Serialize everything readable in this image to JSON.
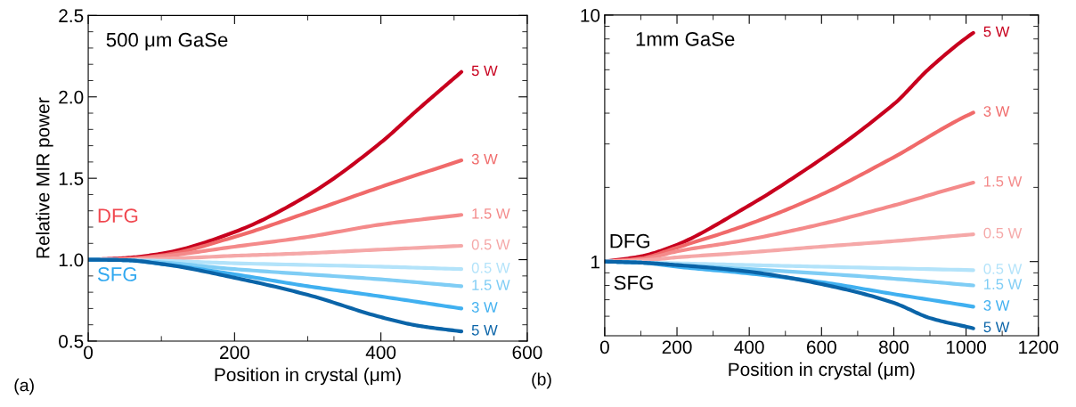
{
  "chart_data": [
    {
      "type": "line",
      "xlabel": "Position in crystal (μm)",
      "ylabel": "Relative MIR power",
      "annotations": [
        "500 μm GaSe",
        "DFG",
        "SFG",
        "(a)"
      ],
      "xlim": [
        0,
        600
      ],
      "xticks": [
        0,
        {
          "value": 100,
          "label": null
        },
        200,
        {
          "value": 300,
          "label": null
        },
        400,
        {
          "value": 500,
          "label": null
        },
        600
      ],
      "ylim": [
        0.5,
        2.5
      ],
      "yticks": [
        0.5,
        {
          "value": 0.6,
          "label": null
        },
        {
          "value": 0.7,
          "label": null
        },
        {
          "value": 0.8,
          "label": null
        },
        {
          "value": 0.9,
          "label": null
        },
        {
          "value": 1.0,
          "label": "1.0"
        },
        {
          "value": 1.1,
          "label": null
        },
        {
          "value": 1.2,
          "label": null
        },
        {
          "value": 1.3,
          "label": null
        },
        {
          "value": 1.4,
          "label": null
        },
        1.5,
        {
          "value": 1.6,
          "label": null
        },
        {
          "value": 1.7,
          "label": null
        },
        {
          "value": 1.8,
          "label": null
        },
        {
          "value": 1.9,
          "label": null
        },
        {
          "value": 2.0,
          "label": "2.0"
        },
        {
          "value": 2.1,
          "label": null
        },
        {
          "value": 2.2,
          "label": null
        },
        {
          "value": 2.3,
          "label": null
        },
        {
          "value": 2.4,
          "label": null
        },
        2.5
      ],
      "grid": false,
      "legend": false,
      "series": [
        {
          "name": "5 W",
          "color": "#c8001e",
          "x": [
            0,
            50,
            100,
            200,
            300,
            400,
            450,
            510
          ],
          "values": [
            1,
            1.01,
            1.037,
            1.17,
            1.395,
            1.72,
            1.92,
            2.153
          ]
        },
        {
          "name": "3 W",
          "color": "#f06a6a",
          "x": [
            0,
            50,
            100,
            200,
            300,
            400,
            510
          ],
          "values": [
            1,
            1.005,
            1.026,
            1.14,
            1.29,
            1.447,
            1.61
          ]
        },
        {
          "name": "1.5 W",
          "color": "#f48a8a",
          "x": [
            0,
            50,
            100,
            200,
            300,
            400,
            510
          ],
          "values": [
            1,
            1.003,
            1.02,
            1.08,
            1.14,
            1.216,
            1.275
          ]
        },
        {
          "name": "0.5 W",
          "color": "#f5a8a8",
          "x": [
            0,
            50,
            100,
            200,
            300,
            400,
            510
          ],
          "values": [
            1,
            1.001,
            1.005,
            1.024,
            1.04,
            1.062,
            1.085
          ]
        },
        {
          "name": "0.5 W",
          "color": "#b3e3fa",
          "x": [
            0,
            100,
            200,
            400,
            510
          ],
          "values": [
            1,
            0.993,
            0.978,
            0.957,
            0.942
          ]
        },
        {
          "name": "1.5 W",
          "color": "#7fcdf5",
          "x": [
            0,
            50,
            100,
            200,
            300,
            400,
            510
          ],
          "values": [
            1,
            0.997,
            0.984,
            0.942,
            0.91,
            0.879,
            0.837
          ]
        },
        {
          "name": "3 W",
          "color": "#40b0f0",
          "x": [
            0,
            50,
            100,
            200,
            300,
            400,
            510
          ],
          "values": [
            1,
            0.997,
            0.974,
            0.91,
            0.837,
            0.774,
            0.7
          ]
        },
        {
          "name": "5 W",
          "color": "#0a64a8",
          "x": [
            0,
            50,
            100,
            200,
            300,
            400,
            450,
            510
          ],
          "values": [
            1,
            0.997,
            0.974,
            0.889,
            0.784,
            0.647,
            0.595,
            0.559
          ]
        }
      ]
    },
    {
      "type": "line",
      "xlabel": "Position in crystal (μm)",
      "annotations": [
        "1mm GaSe",
        "DFG",
        "SFG",
        "(b)"
      ],
      "log": true,
      "xlim": [
        0,
        1200
      ],
      "xticks": [
        0,
        {
          "value": 100,
          "label": null
        },
        200,
        {
          "value": 300,
          "label": null
        },
        400,
        {
          "value": 500,
          "label": null
        },
        600,
        {
          "value": 700,
          "label": null
        },
        800,
        {
          "value": 900,
          "label": null
        },
        1000,
        {
          "value": 1100,
          "label": null
        },
        1200
      ],
      "ylim": [
        0.5,
        10
      ],
      "yticks": [
        {
          "value": 0.6,
          "label": null
        },
        {
          "value": 0.7,
          "label": null
        },
        {
          "value": 0.8,
          "label": null
        },
        {
          "value": 0.9,
          "label": null
        },
        1,
        {
          "value": 2,
          "label": null
        },
        {
          "value": 3,
          "label": null
        },
        {
          "value": 4,
          "label": null
        },
        {
          "value": 5,
          "label": null
        },
        {
          "value": 6,
          "label": null
        },
        {
          "value": 7,
          "label": null
        },
        {
          "value": 8,
          "label": null
        },
        {
          "value": 9,
          "label": null
        },
        10
      ],
      "grid": false,
      "legend": false,
      "series": [
        {
          "name": "5 W",
          "color": "#c8001e",
          "x": [
            0,
            100,
            200,
            400,
            600,
            800,
            900,
            1020
          ],
          "values": [
            1,
            1.05,
            1.17,
            1.69,
            2.61,
            4.35,
            6.1,
            8.47
          ]
        },
        {
          "name": "3 W",
          "color": "#f06a6a",
          "x": [
            0,
            100,
            200,
            400,
            600,
            800,
            1020
          ],
          "values": [
            1,
            1.03,
            1.14,
            1.42,
            1.87,
            2.65,
            4.02
          ]
        },
        {
          "name": "1.5 W",
          "color": "#f48a8a",
          "x": [
            0,
            100,
            200,
            400,
            600,
            800,
            1020
          ],
          "values": [
            1,
            1.02,
            1.1,
            1.23,
            1.42,
            1.69,
            2.09
          ]
        },
        {
          "name": "0.5 W",
          "color": "#f5a8a8",
          "x": [
            0,
            100,
            200,
            400,
            600,
            800,
            1020
          ],
          "values": [
            1,
            1.01,
            1.04,
            1.09,
            1.15,
            1.21,
            1.29
          ]
        },
        {
          "name": "0.5 W",
          "color": "#b3e3fa",
          "x": [
            0,
            200,
            400,
            600,
            1020
          ],
          "values": [
            1,
            0.984,
            0.968,
            0.953,
            0.923
          ]
        },
        {
          "name": "1.5 W",
          "color": "#7fcdf5",
          "x": [
            0,
            100,
            200,
            400,
            600,
            800,
            1020
          ],
          "values": [
            1,
            0.99,
            0.968,
            0.932,
            0.894,
            0.852,
            0.8
          ]
        },
        {
          "name": "3 W",
          "color": "#40b0f0",
          "x": [
            0,
            100,
            200,
            400,
            600,
            800,
            1020
          ],
          "values": [
            1,
            0.99,
            0.953,
            0.894,
            0.825,
            0.738,
            0.656
          ]
        },
        {
          "name": "5 W",
          "color": "#0a64a8",
          "x": [
            0,
            100,
            200,
            400,
            600,
            800,
            900,
            1020
          ],
          "values": [
            1,
            0.99,
            0.968,
            0.91,
            0.81,
            0.68,
            0.59,
            0.536
          ]
        }
      ]
    }
  ]
}
